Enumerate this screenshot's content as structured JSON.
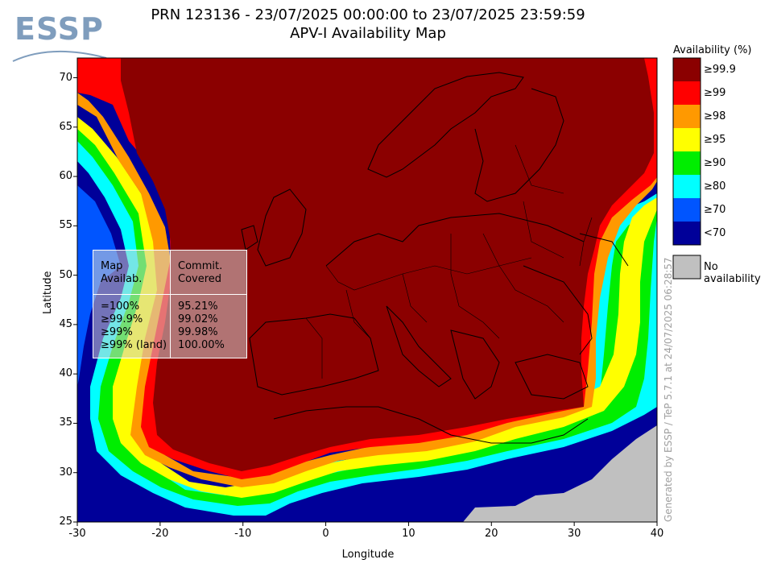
{
  "header": {
    "title_line1": "PRN 123136 - 23/07/2025 00:00:00 to 23/07/2025 23:59:59",
    "title_line2": "APV-I Availability Map",
    "logo_text": "ESSP"
  },
  "axes": {
    "xlabel": "Longitude",
    "ylabel": "Latitude",
    "xticks": [
      "-30",
      "-20",
      "-10",
      "0",
      "10",
      "20",
      "30",
      "40"
    ],
    "yticks": [
      "25",
      "30",
      "35",
      "40",
      "45",
      "50",
      "55",
      "60",
      "65",
      "70"
    ],
    "xlim": [
      -30,
      40
    ],
    "ylim": [
      25,
      72
    ]
  },
  "legend": {
    "title": "Availability (%)",
    "items": [
      {
        "label": "≥99.9",
        "color": "#8b0000"
      },
      {
        "label": "≥99",
        "color": "#ff0000"
      },
      {
        "label": "≥98",
        "color": "#ff9900"
      },
      {
        "label": "≥95",
        "color": "#ffff00"
      },
      {
        "label": "≥90",
        "color": "#00ee00"
      },
      {
        "label": "≥80",
        "color": "#00ffff"
      },
      {
        "label": "≥70",
        "color": "#0055ff"
      },
      {
        "label": "<70",
        "color": "#000099"
      }
    ],
    "no_availability": {
      "label": "No availability",
      "color": "#c0c0c0"
    }
  },
  "stats_box": {
    "header_left_1": "Map",
    "header_left_2": "Availab.",
    "header_right_1": "Commit.",
    "header_right_2": "Covered",
    "rows": [
      {
        "label": "=100%",
        "value": "95.21%"
      },
      {
        "label": "≥99.9%",
        "value": "99.02%"
      },
      {
        "label": "≥99%",
        "value": "99.98%"
      },
      {
        "label": "≥99% (land)",
        "value": "100.00%"
      }
    ]
  },
  "footer_note": "Generated by ESSP / TeP 5.7.1 at 24/07/2025 06:28:57"
}
